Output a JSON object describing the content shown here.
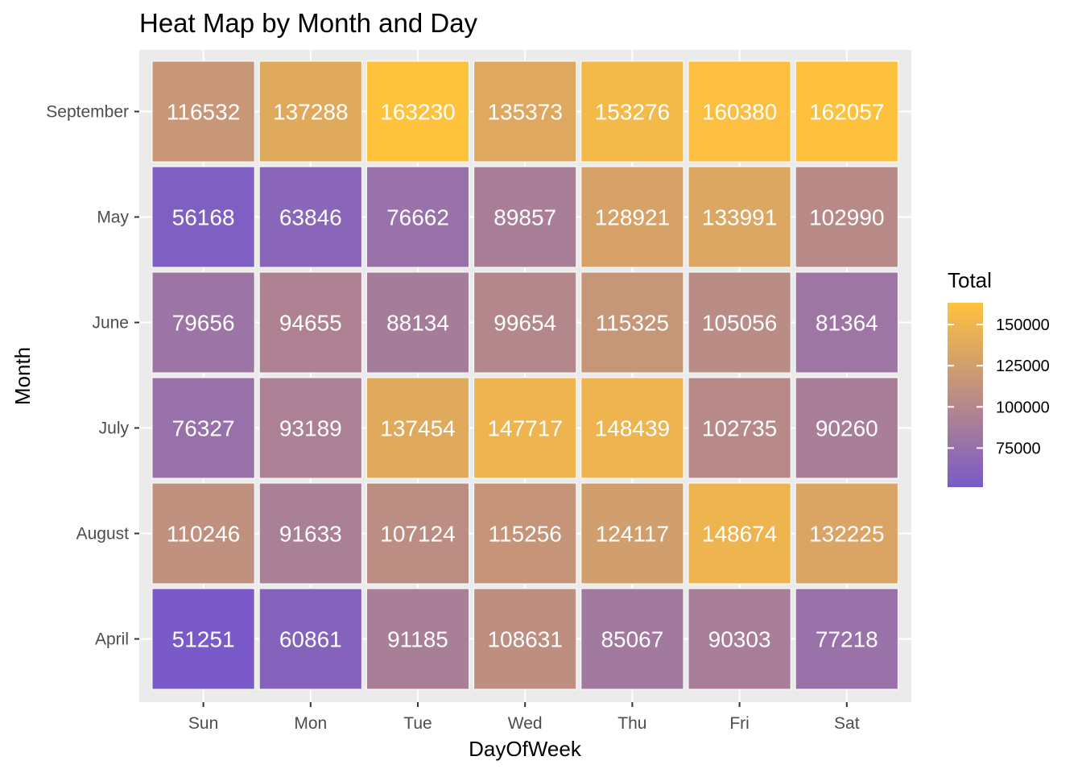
{
  "chart_data": {
    "type": "heatmap",
    "title": "Heat Map by Month and Day",
    "xlabel": "DayOfWeek",
    "ylabel": "Month",
    "x_categories": [
      "Sun",
      "Mon",
      "Tue",
      "Wed",
      "Thu",
      "Fri",
      "Sat"
    ],
    "y_categories_bottom_to_top": [
      "April",
      "August",
      "July",
      "June",
      "May",
      "September"
    ],
    "values": {
      "September": [
        116532,
        137288,
        163230,
        135373,
        153276,
        160380,
        162057
      ],
      "May": [
        56168,
        63846,
        76662,
        89857,
        128921,
        133991,
        102990
      ],
      "June": [
        79656,
        94655,
        88134,
        99654,
        115325,
        105056,
        81364
      ],
      "July": [
        76327,
        93189,
        137454,
        147717,
        148439,
        102735,
        90260
      ],
      "August": [
        110246,
        91633,
        107124,
        115256,
        124117,
        148674,
        132225
      ],
      "April": [
        51251,
        60861,
        91185,
        108631,
        85067,
        90303,
        77218
      ]
    },
    "legend": {
      "title": "Total",
      "position": "right",
      "breaks": [
        75000,
        100000,
        125000,
        150000
      ],
      "break_labels": [
        "75000",
        "100000",
        "125000",
        "150000"
      ],
      "low_color": "#7a5ac9",
      "high_color": "#ffc23d",
      "min": 51251,
      "max": 163230
    },
    "panel_background": "#ebebeb",
    "grid_color": "#ffffff",
    "grid": true
  }
}
